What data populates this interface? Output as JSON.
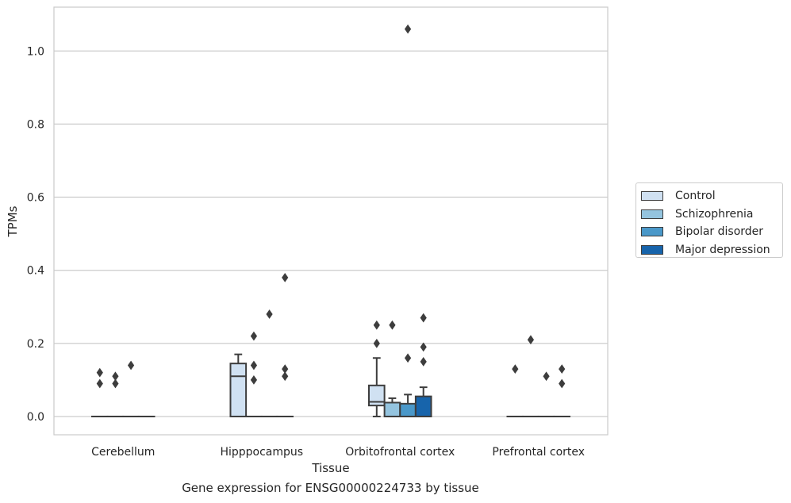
{
  "chart_data": {
    "type": "box",
    "title": "",
    "caption": "Gene expression for ENSG00000224733 by tissue",
    "xlabel": "Tissue",
    "ylabel": "TPMs",
    "ylim": [
      -0.05,
      1.12
    ],
    "yticks": [
      0.0,
      0.2,
      0.4,
      0.6,
      0.8,
      1.0
    ],
    "ytick_labels": [
      "0.0",
      "0.2",
      "0.4",
      "0.6",
      "0.8",
      "1.0"
    ],
    "grid": "horizontal",
    "legend_position": "right",
    "categories": [
      "Cerebellum",
      "Hipppocampus",
      "Orbitofrontal cortex",
      "Prefrontal cortex"
    ],
    "series": [
      {
        "name": "Control",
        "color": "#d0e1f2",
        "boxes": [
          {
            "q1": 0,
            "median": 0,
            "q3": 0,
            "whisker_low": 0,
            "whisker_high": 0,
            "outliers": [
              0.09,
              0.12
            ]
          },
          {
            "q1": 0,
            "median": 0.11,
            "q3": 0.145,
            "whisker_low": 0,
            "whisker_high": 0.17,
            "outliers": []
          },
          {
            "q1": 0.03,
            "median": 0.04,
            "q3": 0.085,
            "whisker_low": 0,
            "whisker_high": 0.16,
            "outliers": [
              0.2,
              0.25
            ]
          },
          {
            "q1": 0,
            "median": 0,
            "q3": 0,
            "whisker_low": 0,
            "whisker_high": 0,
            "outliers": [
              0.13
            ]
          }
        ]
      },
      {
        "name": "Schizophrenia",
        "color": "#94c4df",
        "boxes": [
          {
            "q1": 0,
            "median": 0,
            "q3": 0,
            "whisker_low": 0,
            "whisker_high": 0,
            "outliers": [
              0.09,
              0.11
            ]
          },
          {
            "q1": 0,
            "median": 0,
            "q3": 0,
            "whisker_low": 0,
            "whisker_high": 0,
            "outliers": [
              0.1,
              0.14,
              0.22
            ]
          },
          {
            "q1": 0,
            "median": 0,
            "q3": 0.038,
            "whisker_low": 0,
            "whisker_high": 0.05,
            "outliers": [
              0.25
            ]
          },
          {
            "q1": 0,
            "median": 0,
            "q3": 0,
            "whisker_low": 0,
            "whisker_high": 0,
            "outliers": [
              0.21
            ]
          }
        ]
      },
      {
        "name": "Bipolar disorder",
        "color": "#4a98c9",
        "boxes": [
          {
            "q1": 0,
            "median": 0,
            "q3": 0,
            "whisker_low": 0,
            "whisker_high": 0,
            "outliers": [
              0.14
            ]
          },
          {
            "q1": 0,
            "median": 0,
            "q3": 0,
            "whisker_low": 0,
            "whisker_high": 0,
            "outliers": [
              0.28
            ]
          },
          {
            "q1": 0,
            "median": 0,
            "q3": 0.035,
            "whisker_low": 0,
            "whisker_high": 0.06,
            "outliers": [
              0.16,
              1.06
            ]
          },
          {
            "q1": 0,
            "median": 0,
            "q3": 0,
            "whisker_low": 0,
            "whisker_high": 0,
            "outliers": [
              0.11
            ]
          }
        ]
      },
      {
        "name": "Major depression",
        "color": "#1764ab",
        "boxes": [
          {
            "q1": 0,
            "median": 0,
            "q3": 0,
            "whisker_low": 0,
            "whisker_high": 0,
            "outliers": []
          },
          {
            "q1": 0,
            "median": 0,
            "q3": 0,
            "whisker_low": 0,
            "whisker_high": 0,
            "outliers": [
              0.11,
              0.13,
              0.38
            ]
          },
          {
            "q1": 0,
            "median": 0,
            "q3": 0.055,
            "whisker_low": 0,
            "whisker_high": 0.08,
            "outliers": [
              0.15,
              0.19,
              0.27
            ]
          },
          {
            "q1": 0,
            "median": 0,
            "q3": 0,
            "whisker_low": 0,
            "whisker_high": 0,
            "outliers": [
              0.09,
              0.13
            ]
          }
        ]
      }
    ]
  }
}
